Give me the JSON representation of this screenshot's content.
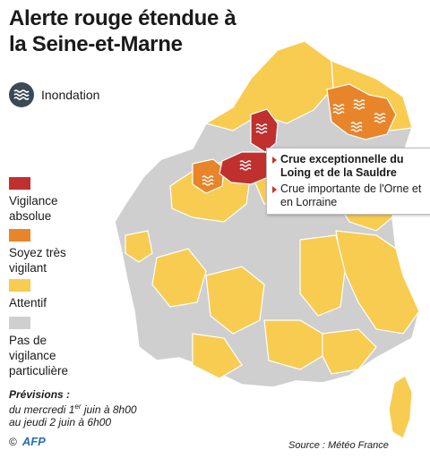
{
  "title": "Alerte rouge étendue à la Seine-et-Marne",
  "flood_legend": {
    "icon": "flood-waves-icon",
    "label": "Inondation"
  },
  "legend": [
    {
      "label": "Vigilance absolue",
      "color": "#c0302f"
    },
    {
      "label": "Soyez très vigilant",
      "color": "#e8842a"
    },
    {
      "label": "Attentif",
      "color": "#f7cc50"
    },
    {
      "label": "Pas de vigilance particulière",
      "color": "#cfcfcf"
    }
  ],
  "callout": {
    "item1": "Crue exceptionnelle du Loing et de la Sauldre",
    "item2": "Crue importante de l'Orne et en Lorraine"
  },
  "forecast": {
    "heading": "Prévisions :",
    "line1_before": "du mercredi 1",
    "line1_sup": "er",
    "line1_after": " juin à 8h00",
    "line2": "au jeudi 2 juin à 6h00"
  },
  "credit": {
    "copyright": "©",
    "agency": "AFP"
  },
  "source": "Source : Météo France",
  "colors": {
    "red": "#c0302f",
    "orange": "#e8842a",
    "yellow": "#f7cc50",
    "grey": "#cfcfcf",
    "flood_badge": "#3a4a56"
  }
}
